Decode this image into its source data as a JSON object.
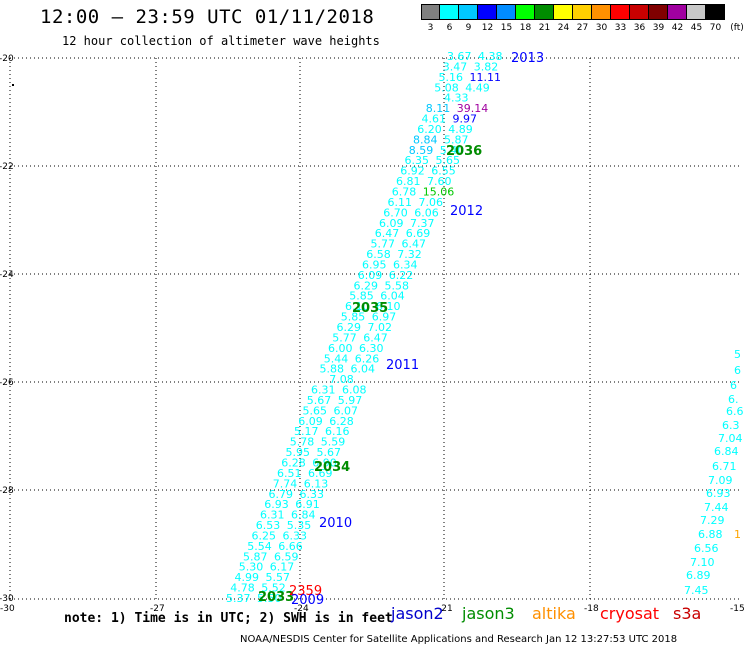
{
  "header": {
    "title": "12:00 – 23:59 UTC 01/11/2018",
    "subtitle": "12 hour collection of altimeter wave heights"
  },
  "colorbar": {
    "unit": "(ft)",
    "colors": [
      "#808080",
      "#00ffff",
      "#00c8ff",
      "#0000ff",
      "#008cff",
      "#00ff00",
      "#008c00",
      "#ffff00",
      "#ffd000",
      "#ff9000",
      "#ff0000",
      "#c80000",
      "#800000",
      "#a000a0",
      "#c8c8c8",
      "#000000"
    ],
    "ticks": [
      "3",
      "6",
      "9",
      "12",
      "15",
      "18",
      "21",
      "24",
      "27",
      "30",
      "33",
      "36",
      "39",
      "42",
      "45",
      "70"
    ]
  },
  "axes": {
    "x_ticks": [
      "-30",
      "-27",
      "-24",
      "-21",
      "-18",
      "-15"
    ],
    "y_ticks": [
      "-20",
      "-22",
      "-24",
      "-26",
      "-28",
      "-30"
    ]
  },
  "passes": [
    {
      "label": "2013",
      "color": "#0000ff"
    },
    {
      "label": "2036",
      "color": "#008c00"
    },
    {
      "label": "2012",
      "color": "#0000ff"
    },
    {
      "label": "2035",
      "color": "#008c00"
    },
    {
      "label": "2011",
      "color": "#0000ff"
    },
    {
      "label": "2034",
      "color": "#008c00"
    },
    {
      "label": "2010",
      "color": "#0000ff"
    },
    {
      "label": "2033",
      "color": "#008c00"
    },
    {
      "label": "2359",
      "color": "#ff0000"
    },
    {
      "label": "2009",
      "color": "#0000ff"
    }
  ],
  "track_main": [
    {
      "v": "3.67",
      "c": "#00ffff"
    },
    {
      "v": "4.38",
      "c": "#00ffff"
    },
    {
      "v": "3.47",
      "c": "#00ffff"
    },
    {
      "v": "3.82",
      "c": "#00ffff"
    },
    {
      "v": "5.16",
      "c": "#00ffff"
    },
    {
      "v": "11.11",
      "c": "#0000ff"
    },
    {
      "v": "5.08",
      "c": "#00ffff"
    },
    {
      "v": "4.49",
      "c": "#00ffff"
    },
    {
      "v": "4.33",
      "c": "#00ffff"
    },
    {
      "v": "8.11",
      "c": "#00c8ff"
    },
    {
      "v": "39.14",
      "c": "#a000a0"
    },
    {
      "v": "4.61",
      "c": "#00ffff"
    },
    {
      "v": "9.97",
      "c": "#0000ff"
    },
    {
      "v": "6.20",
      "c": "#00ffff"
    },
    {
      "v": "4.89",
      "c": "#00ffff"
    },
    {
      "v": "8.84",
      "c": "#00c8ff"
    },
    {
      "v": "5.87",
      "c": "#00ffff"
    },
    {
      "v": "8.59",
      "c": "#00c8ff"
    },
    {
      "v": "5.40",
      "c": "#00ffff"
    },
    {
      "v": "6.35",
      "c": "#00ffff"
    },
    {
      "v": "5.65",
      "c": "#00ffff"
    },
    {
      "v": "6.92",
      "c": "#00ffff"
    },
    {
      "v": "6.55",
      "c": "#00ffff"
    },
    {
      "v": "6.81",
      "c": "#00ffff"
    },
    {
      "v": "7.60",
      "c": "#00ffff"
    },
    {
      "v": "6.78",
      "c": "#00ffff"
    },
    {
      "v": "15.06",
      "c": "#00c800"
    },
    {
      "v": "6.11",
      "c": "#00ffff"
    },
    {
      "v": "7.06",
      "c": "#00ffff"
    },
    {
      "v": "6.70",
      "c": "#00ffff"
    },
    {
      "v": "6.06",
      "c": "#00ffff"
    },
    {
      "v": "6.09",
      "c": "#00ffff"
    },
    {
      "v": "7.37",
      "c": "#00ffff"
    },
    {
      "v": "6.47",
      "c": "#00ffff"
    },
    {
      "v": "6.69",
      "c": "#00ffff"
    },
    {
      "v": "5.77",
      "c": "#00ffff"
    },
    {
      "v": "6.47",
      "c": "#00ffff"
    },
    {
      "v": "6.58",
      "c": "#00ffff"
    },
    {
      "v": "7.32",
      "c": "#00ffff"
    },
    {
      "v": "6.95",
      "c": "#00ffff"
    },
    {
      "v": "6.34",
      "c": "#00ffff"
    },
    {
      "v": "6.09",
      "c": "#00ffff"
    },
    {
      "v": "6.22",
      "c": "#00ffff"
    },
    {
      "v": "6.29",
      "c": "#00ffff"
    },
    {
      "v": "5.58",
      "c": "#00ffff"
    },
    {
      "v": "5.85",
      "c": "#00ffff"
    },
    {
      "v": "6.04",
      "c": "#00ffff"
    },
    {
      "v": "6.10",
      "c": "#00ffff"
    },
    {
      "v": "6.10",
      "c": "#00ffff"
    },
    {
      "v": "5.85",
      "c": "#00ffff"
    },
    {
      "v": "6.97",
      "c": "#00ffff"
    },
    {
      "v": "6.29",
      "c": "#00ffff"
    },
    {
      "v": "7.02",
      "c": "#00ffff"
    },
    {
      "v": "5.77",
      "c": "#00ffff"
    },
    {
      "v": "6.47",
      "c": "#00ffff"
    },
    {
      "v": "6.00",
      "c": "#00ffff"
    },
    {
      "v": "6.30",
      "c": "#00ffff"
    },
    {
      "v": "5.44",
      "c": "#00ffff"
    },
    {
      "v": "6.26",
      "c": "#00ffff"
    },
    {
      "v": "5.88",
      "c": "#00ffff"
    },
    {
      "v": "6.04",
      "c": "#00ffff"
    },
    {
      "v": "7.08",
      "c": "#00ffff"
    },
    {
      "v": "6.31",
      "c": "#00ffff"
    },
    {
      "v": "6.08",
      "c": "#00ffff"
    },
    {
      "v": "5.67",
      "c": "#00ffff"
    },
    {
      "v": "5.97",
      "c": "#00ffff"
    },
    {
      "v": "5.65",
      "c": "#00ffff"
    },
    {
      "v": "6.07",
      "c": "#00ffff"
    },
    {
      "v": "6.09",
      "c": "#00ffff"
    },
    {
      "v": "6.28",
      "c": "#00ffff"
    },
    {
      "v": "5.17",
      "c": "#00ffff"
    },
    {
      "v": "6.16",
      "c": "#00ffff"
    },
    {
      "v": "5.78",
      "c": "#00ffff"
    },
    {
      "v": "5.59",
      "c": "#00ffff"
    },
    {
      "v": "5.95",
      "c": "#00ffff"
    },
    {
      "v": "5.67",
      "c": "#00ffff"
    },
    {
      "v": "6.28",
      "c": "#00ffff"
    },
    {
      "v": "6.90",
      "c": "#00ffff"
    },
    {
      "v": "6.51",
      "c": "#00ffff"
    },
    {
      "v": "6.69",
      "c": "#00ffff"
    },
    {
      "v": "7.74",
      "c": "#00ffff"
    },
    {
      "v": "6.13",
      "c": "#00ffff"
    },
    {
      "v": "6.79",
      "c": "#00ffff"
    },
    {
      "v": "6.33",
      "c": "#00ffff"
    },
    {
      "v": "6.93",
      "c": "#00ffff"
    },
    {
      "v": "6.91",
      "c": "#00ffff"
    },
    {
      "v": "6.31",
      "c": "#00ffff"
    },
    {
      "v": "6.84",
      "c": "#00ffff"
    },
    {
      "v": "6.53",
      "c": "#00ffff"
    },
    {
      "v": "5.35",
      "c": "#00ffff"
    },
    {
      "v": "6.25",
      "c": "#00ffff"
    },
    {
      "v": "6.33",
      "c": "#00ffff"
    },
    {
      "v": "5.54",
      "c": "#00ffff"
    },
    {
      "v": "6.66",
      "c": "#00ffff"
    },
    {
      "v": "5.87",
      "c": "#00ffff"
    },
    {
      "v": "6.59",
      "c": "#00ffff"
    },
    {
      "v": "5.30",
      "c": "#00ffff"
    },
    {
      "v": "6.17",
      "c": "#00ffff"
    },
    {
      "v": "4.99",
      "c": "#00ffff"
    },
    {
      "v": "5.57",
      "c": "#00ffff"
    },
    {
      "v": "4.78",
      "c": "#00ffff"
    },
    {
      "v": "5.52",
      "c": "#00ffff"
    },
    {
      "v": "5.37",
      "c": "#00ffff"
    },
    {
      "v": "5.50",
      "c": "#00ffff"
    }
  ],
  "track_right": [
    {
      "v": "5",
      "c": "#00ffff"
    },
    {
      "v": "6",
      "c": "#00ffff"
    },
    {
      "v": "6",
      "c": "#00ffff"
    },
    {
      "v": "6.",
      "c": "#00ffff"
    },
    {
      "v": "6.6",
      "c": "#00ffff"
    },
    {
      "v": "6.3",
      "c": "#00ffff"
    },
    {
      "v": "7.04",
      "c": "#00ffff"
    },
    {
      "v": "6.84",
      "c": "#00ffff"
    },
    {
      "v": "6.71",
      "c": "#00ffff"
    },
    {
      "v": "7.09",
      "c": "#00ffff"
    },
    {
      "v": "6.93",
      "c": "#00ffff"
    },
    {
      "v": "7.44",
      "c": "#00ffff"
    },
    {
      "v": "7.29",
      "c": "#00ffff"
    },
    {
      "v": "6.88",
      "c": "#00ffff"
    },
    {
      "v": "6.56",
      "c": "#00ffff"
    },
    {
      "v": "7.10",
      "c": "#00ffff"
    },
    {
      "v": "6.89",
      "c": "#00ffff"
    },
    {
      "v": "7.45",
      "c": "#00ffff"
    },
    {
      "v": "1",
      "c": "#ffa500"
    }
  ],
  "footer": {
    "notes": "note: 1) Time is in UTC; 2) SWH is in feet",
    "credit": "NOAA/NESDIS Center for Satellite Applications and Research   Jan 12 13:27:53 UTC 2018",
    "satellites": [
      {
        "name": "jason2",
        "color": "#0000cc"
      },
      {
        "name": "jason3",
        "color": "#008c00"
      },
      {
        "name": "altika",
        "color": "#ff9000"
      },
      {
        "name": "cryosat",
        "color": "#ff0000"
      },
      {
        "name": "s3a",
        "color": "#c80000"
      }
    ]
  }
}
